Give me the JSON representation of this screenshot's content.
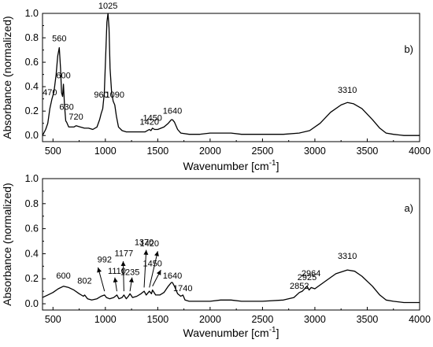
{
  "chart_data": [
    {
      "panel": "b)",
      "type": "line",
      "xlabel": "Wavenumber [cm",
      "xlabel_sup": "-1",
      "xlabel_tail": "]",
      "ylabel": "Absorbance (normalized)",
      "xlim": [
        400,
        4000
      ],
      "ylim": [
        -0.05,
        1.0
      ],
      "xticks": [
        500,
        1000,
        1500,
        2000,
        2500,
        3000,
        3500,
        4000
      ],
      "yticks": [
        0.0,
        0.2,
        0.4,
        0.6,
        0.8,
        1.0
      ],
      "ytick_labels": [
        "0.0",
        "0.2",
        "0.4",
        "0.6",
        "0.8",
        "1.0"
      ],
      "grid": false,
      "series": [
        {
          "color": "#000000",
          "points": [
            [
              400,
              0.0
            ],
            [
              430,
              0.05
            ],
            [
              450,
              0.1
            ],
            [
              470,
              0.22
            ],
            [
              490,
              0.3
            ],
            [
              510,
              0.36
            ],
            [
              530,
              0.5
            ],
            [
              545,
              0.65
            ],
            [
              560,
              0.72
            ],
            [
              572,
              0.55
            ],
            [
              582,
              0.35
            ],
            [
              592,
              0.32
            ],
            [
              600,
              0.42
            ],
            [
              610,
              0.25
            ],
            [
              622,
              0.12
            ],
            [
              630,
              0.11
            ],
            [
              650,
              0.07
            ],
            [
              700,
              0.07
            ],
            [
              720,
              0.08
            ],
            [
              760,
              0.07
            ],
            [
              800,
              0.06
            ],
            [
              840,
              0.06
            ],
            [
              880,
              0.05
            ],
            [
              920,
              0.07
            ],
            [
              945,
              0.13
            ],
            [
              960,
              0.18
            ],
            [
              975,
              0.22
            ],
            [
              990,
              0.35
            ],
            [
              1005,
              0.7
            ],
            [
              1015,
              0.93
            ],
            [
              1025,
              1.0
            ],
            [
              1035,
              0.88
            ],
            [
              1045,
              0.55
            ],
            [
              1060,
              0.35
            ],
            [
              1075,
              0.28
            ],
            [
              1090,
              0.25
            ],
            [
              1105,
              0.16
            ],
            [
              1125,
              0.07
            ],
            [
              1160,
              0.04
            ],
            [
              1200,
              0.03
            ],
            [
              1300,
              0.03
            ],
            [
              1380,
              0.03
            ],
            [
              1420,
              0.05
            ],
            [
              1435,
              0.04
            ],
            [
              1450,
              0.06
            ],
            [
              1470,
              0.05
            ],
            [
              1500,
              0.05
            ],
            [
              1560,
              0.07
            ],
            [
              1600,
              0.1
            ],
            [
              1630,
              0.13
            ],
            [
              1640,
              0.13
            ],
            [
              1660,
              0.11
            ],
            [
              1690,
              0.05
            ],
            [
              1720,
              0.02
            ],
            [
              1800,
              0.01
            ],
            [
              1900,
              0.01
            ],
            [
              2000,
              0.02
            ],
            [
              2100,
              0.02
            ],
            [
              2200,
              0.02
            ],
            [
              2300,
              0.01
            ],
            [
              2500,
              0.01
            ],
            [
              2700,
              0.01
            ],
            [
              2850,
              0.02
            ],
            [
              2950,
              0.04
            ],
            [
              3050,
              0.1
            ],
            [
              3150,
              0.19
            ],
            [
              3250,
              0.25
            ],
            [
              3310,
              0.27
            ],
            [
              3370,
              0.26
            ],
            [
              3450,
              0.22
            ],
            [
              3550,
              0.13
            ],
            [
              3620,
              0.06
            ],
            [
              3680,
              0.02
            ],
            [
              3750,
              0.01
            ],
            [
              3850,
              0.0
            ],
            [
              4000,
              0.0
            ]
          ]
        }
      ],
      "annotations": [
        {
          "text": "470",
          "x": 470,
          "y": 0.33
        },
        {
          "text": "560",
          "x": 560,
          "y": 0.77
        },
        {
          "text": "600",
          "x": 600,
          "y": 0.47
        },
        {
          "text": "630",
          "x": 630,
          "y": 0.21
        },
        {
          "text": "720",
          "x": 720,
          "y": 0.13
        },
        {
          "text": "960",
          "x": 960,
          "y": 0.31
        },
        {
          "text": "1025",
          "x": 1025,
          "y": 1.04
        },
        {
          "text": "1090",
          "x": 1090,
          "y": 0.31
        },
        {
          "text": "1420",
          "x": 1420,
          "y": 0.09
        },
        {
          "text": "1450",
          "x": 1450,
          "y": 0.12
        },
        {
          "text": "1640",
          "x": 1640,
          "y": 0.18
        },
        {
          "text": "3310",
          "x": 3310,
          "y": 0.35
        }
      ]
    },
    {
      "panel": "a)",
      "type": "line",
      "xlabel": "Wavenumber",
      "xlabel_unit": "[cm",
      "xlabel_sup": "-1",
      "xlabel_tail": "]",
      "ylabel": "Absorbance (normalized)",
      "xlim": [
        400,
        4000
      ],
      "ylim": [
        -0.05,
        1.0
      ],
      "xticks": [
        500,
        1000,
        1500,
        2000,
        2500,
        3000,
        3500,
        4000
      ],
      "yticks": [
        0.0,
        0.2,
        0.4,
        0.6,
        0.8,
        1.0
      ],
      "ytick_labels": [
        "0.0",
        "0.2",
        "0.4",
        "0.6",
        "0.8",
        "1.0"
      ],
      "grid": false,
      "series": [
        {
          "color": "#000000",
          "points": [
            [
              400,
              0.05
            ],
            [
              450,
              0.07
            ],
            [
              500,
              0.09
            ],
            [
              550,
              0.12
            ],
            [
              600,
              0.14
            ],
            [
              650,
              0.13
            ],
            [
              700,
              0.11
            ],
            [
              750,
              0.08
            ],
            [
              790,
              0.06
            ],
            [
              802,
              0.07
            ],
            [
              830,
              0.04
            ],
            [
              870,
              0.03
            ],
            [
              920,
              0.04
            ],
            [
              960,
              0.06
            ],
            [
              992,
              0.07
            ],
            [
              1010,
              0.05
            ],
            [
              1040,
              0.04
            ],
            [
              1080,
              0.05
            ],
            [
              1110,
              0.07
            ],
            [
              1130,
              0.04
            ],
            [
              1160,
              0.05
            ],
            [
              1177,
              0.07
            ],
            [
              1200,
              0.04
            ],
            [
              1220,
              0.06
            ],
            [
              1235,
              0.08
            ],
            [
              1260,
              0.05
            ],
            [
              1300,
              0.06
            ],
            [
              1340,
              0.08
            ],
            [
              1370,
              0.1
            ],
            [
              1390,
              0.07
            ],
            [
              1420,
              0.1
            ],
            [
              1440,
              0.08
            ],
            [
              1450,
              0.11
            ],
            [
              1480,
              0.07
            ],
            [
              1520,
              0.07
            ],
            [
              1560,
              0.09
            ],
            [
              1600,
              0.14
            ],
            [
              1630,
              0.17
            ],
            [
              1640,
              0.17
            ],
            [
              1660,
              0.14
            ],
            [
              1690,
              0.08
            ],
            [
              1720,
              0.06
            ],
            [
              1740,
              0.07
            ],
            [
              1760,
              0.03
            ],
            [
              1800,
              0.02
            ],
            [
              1900,
              0.02
            ],
            [
              2000,
              0.02
            ],
            [
              2100,
              0.03
            ],
            [
              2200,
              0.03
            ],
            [
              2300,
              0.02
            ],
            [
              2500,
              0.02
            ],
            [
              2700,
              0.03
            ],
            [
              2800,
              0.05
            ],
            [
              2852,
              0.09
            ],
            [
              2880,
              0.1
            ],
            [
              2925,
              0.14
            ],
            [
              2945,
              0.11
            ],
            [
              2964,
              0.13
            ],
            [
              3000,
              0.12
            ],
            [
              3100,
              0.18
            ],
            [
              3200,
              0.24
            ],
            [
              3310,
              0.27
            ],
            [
              3380,
              0.26
            ],
            [
              3450,
              0.22
            ],
            [
              3550,
              0.14
            ],
            [
              3620,
              0.07
            ],
            [
              3680,
              0.03
            ],
            [
              3750,
              0.02
            ],
            [
              3850,
              0.01
            ],
            [
              4000,
              0.01
            ]
          ]
        }
      ],
      "annotations": [
        {
          "text": "600",
          "x": 600,
          "y": 0.2
        },
        {
          "text": "802",
          "x": 802,
          "y": 0.16
        },
        {
          "text": "992",
          "x": 992,
          "y": 0.33
        },
        {
          "text": "1110",
          "x": 1110,
          "y": 0.24
        },
        {
          "text": "1177",
          "x": 1177,
          "y": 0.38
        },
        {
          "text": "1235",
          "x": 1235,
          "y": 0.23
        },
        {
          "text": "1370",
          "x": 1370,
          "y": 0.47
        },
        {
          "text": "1420",
          "x": 1420,
          "y": 0.46
        },
        {
          "text": "1450",
          "x": 1450,
          "y": 0.3
        },
        {
          "text": "1640",
          "x": 1640,
          "y": 0.2
        },
        {
          "text": "1740",
          "x": 1740,
          "y": 0.1
        },
        {
          "text": "2852",
          "x": 2852,
          "y": 0.12
        },
        {
          "text": "2925",
          "x": 2925,
          "y": 0.19
        },
        {
          "text": "2964",
          "x": 2964,
          "y": 0.22
        },
        {
          "text": "3310",
          "x": 3310,
          "y": 0.36
        }
      ],
      "arrows": [
        {
          "from": [
            992,
            0.1
          ],
          "to": [
            930,
            0.29
          ]
        },
        {
          "from": [
            1110,
            0.1
          ],
          "to": [
            1090,
            0.21
          ]
        },
        {
          "from": [
            1177,
            0.1
          ],
          "to": [
            1170,
            0.34
          ]
        },
        {
          "from": [
            1235,
            0.1
          ],
          "to": [
            1255,
            0.21
          ]
        },
        {
          "from": [
            1370,
            0.13
          ],
          "to": [
            1390,
            0.43
          ]
        },
        {
          "from": [
            1420,
            0.13
          ],
          "to": [
            1500,
            0.42
          ]
        },
        {
          "from": [
            1450,
            0.14
          ],
          "to": [
            1530,
            0.27
          ]
        }
      ]
    }
  ]
}
